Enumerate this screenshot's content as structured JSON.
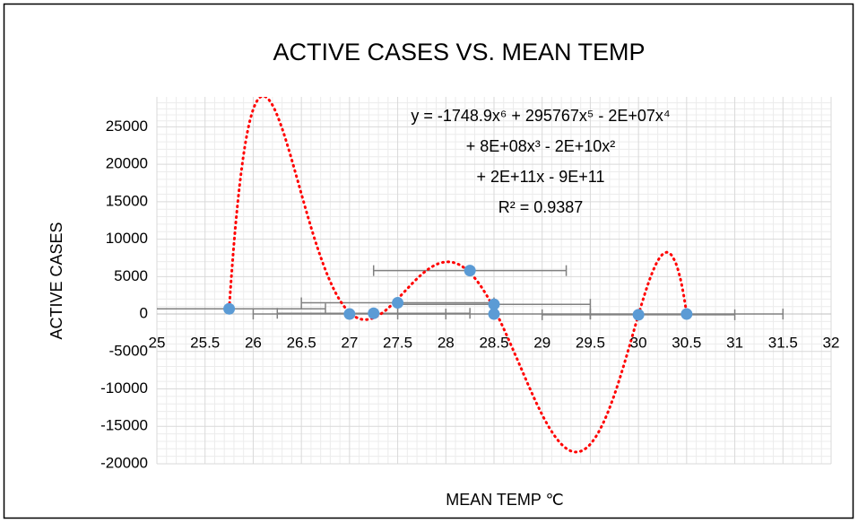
{
  "chart_data": {
    "type": "scatter",
    "title": "ACTIVE CASES VS. MEAN TEMP",
    "x_label": "MEAN TEMP ℃",
    "y_label": "ACTIVE  CASES",
    "trendline_label": [
      "y = -1748.9x⁶ + 295767x⁵ - 2E+07x⁴",
      "+ 8E+08x³ - 2E+10x²",
      "+ 2E+11x - 9E+11",
      "R² = 0.9387"
    ],
    "trendline": {
      "type": "polynomial",
      "order": 6,
      "color": "#ff0000"
    },
    "series": [
      {
        "color": "#5b9bd5",
        "error_color": "#808080",
        "x": [
          25.75,
          27,
          27.25,
          27.5,
          28.25,
          28.5,
          28.5,
          30,
          30.5
        ],
        "values": [
          700,
          0,
          100,
          1500,
          5800,
          1300,
          0,
          -100,
          0
        ],
        "x_errors": [
          1,
          1,
          1,
          1,
          1,
          1,
          1,
          1,
          1
        ]
      }
    ],
    "xlim": [
      25,
      32
    ],
    "xticks": [
      25,
      25.5,
      26,
      26.5,
      27,
      27.5,
      28,
      28.5,
      29,
      29.5,
      30,
      30.5,
      31,
      31.5,
      32
    ],
    "ylim": [
      -20000,
      29000
    ],
    "yticks": [
      -20000,
      -15000,
      -10000,
      -5000,
      0,
      5000,
      10000,
      15000,
      20000,
      25000
    ],
    "grid": true,
    "minor_grid": true
  }
}
